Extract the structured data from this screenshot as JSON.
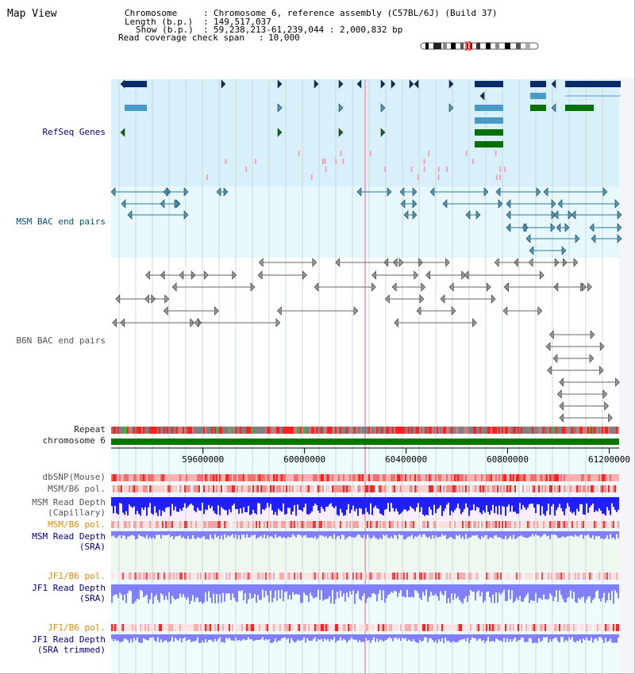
{
  "header": {
    "title": "Map View",
    "chromosome_label": "Chromosome",
    "chromosome_value": "Chromosome 6, reference assembly (C57BL/6J) (Build 37)",
    "length_label": "Length (b.p.)",
    "length_value": "149,517,037",
    "show_label": "Show (b.p.)",
    "show_value": "59,238,213-61,239,044 : 2,000,832 bp",
    "coverage_label": "Read coverage check span",
    "coverage_value": "10,000"
  },
  "tracks": {
    "refseq": "RefSeq Genes",
    "msm_bac": "MSM BAC end pairs",
    "b6n_bac": "B6N BAC end pairs",
    "repeat": "Repeat",
    "chromosome": "chromosome 6",
    "dbsnp": "dbSNP(Mouse)",
    "msm_b6_pol_1": "MSM/B6 pol.",
    "msm_depth_cap_1": "MSM Read Depth",
    "msm_depth_cap_2": "(Capillary)",
    "msm_b6_pol_2": "MSM/B6 pol.",
    "msm_depth_sra_1": "MSM Read Depth",
    "msm_depth_sra_2": "(SRA)",
    "jf1_b6_pol_1": "JF1/B6 pol.",
    "jf1_depth_sra_1": "JF1 Read Depth",
    "jf1_depth_sra_2": "(SRA)",
    "jf1_b6_pol_2": "JF1/B6 pol.",
    "jf1_depth_trim_1": "JF1 Read Depth",
    "jf1_depth_trim_2": "(SRA trimmed)"
  },
  "axis": {
    "ticks": [
      "59600000",
      "60000000",
      "60400000",
      "60800000",
      "61200000"
    ],
    "tick_positions_bp": [
      59600000,
      60000000,
      60400000,
      60800000,
      61200000
    ]
  },
  "colors": {
    "refseq_bg": "#d8f0fa",
    "bac_bg": "#e6f8fc",
    "gene_navy": "#0a2a6a",
    "gene_blue": "#4a9ac8",
    "gene_green": "#007000",
    "chromosome_bar": "#007700",
    "depth_blue": "#2020ff",
    "depth_light": "#8080ff",
    "snp_red": "#ff0000"
  }
}
